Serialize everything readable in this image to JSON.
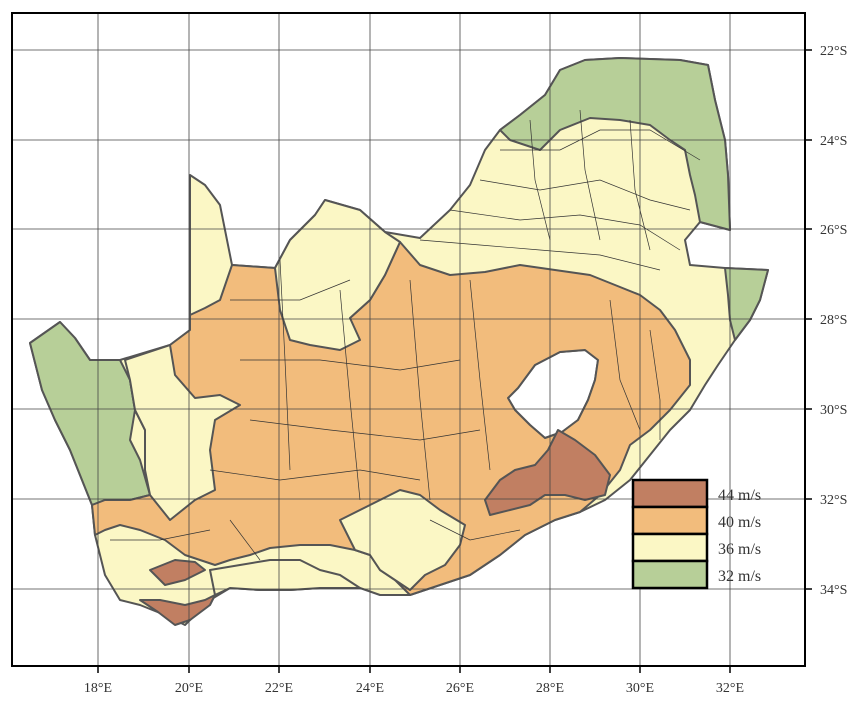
{
  "map": {
    "x_ticks": [
      "18°E",
      "20°E",
      "22°E",
      "24°E",
      "26°E",
      "28°E",
      "30°E",
      "32°E"
    ],
    "y_ticks": [
      "22°S",
      "24°S",
      "26°S",
      "28°S",
      "30°S",
      "32°S",
      "34°S"
    ],
    "legend": [
      {
        "label": "44 m/s",
        "color": "#c17f62"
      },
      {
        "label": "40 m/s",
        "color": "#f2bc7c"
      },
      {
        "label": "36 m/s",
        "color": "#fbf7c5"
      },
      {
        "label": "32 m/s",
        "color": "#b7cf98"
      }
    ],
    "colors": {
      "c44": "#c17f62",
      "c40": "#f2bc7c",
      "c36": "#fbf7c5",
      "c32": "#b7cf98",
      "frame": "#000000",
      "grid": "#444444"
    }
  }
}
